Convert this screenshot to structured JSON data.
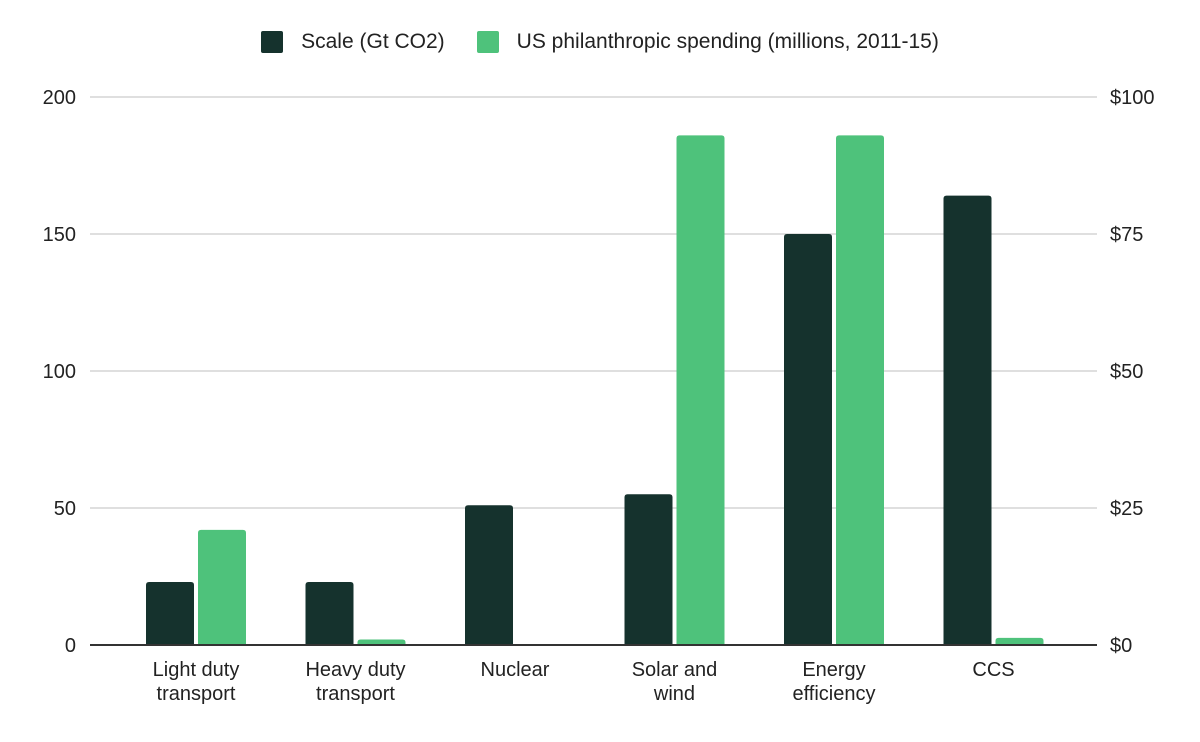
{
  "chart_data": {
    "type": "bar",
    "title": "",
    "categories": [
      [
        "Light duty",
        "transport"
      ],
      [
        "Heavy duty",
        "transport"
      ],
      [
        "Nuclear"
      ],
      [
        "Solar and",
        "wind"
      ],
      [
        "Energy",
        "efficiency"
      ],
      [
        "CCS"
      ]
    ],
    "series": [
      {
        "name": "Scale (Gt CO2)",
        "color": "#15322d",
        "axis": "left",
        "values": [
          23,
          23,
          51,
          55,
          150,
          164
        ]
      },
      {
        "name": "US philanthropic spending (millions, 2011-15)",
        "color": "#4ec27b",
        "axis": "right",
        "values": [
          21,
          1,
          0,
          93,
          93,
          1.3
        ]
      }
    ],
    "left_axis": {
      "label": "",
      "range": [
        0,
        200
      ],
      "ticks": [
        0,
        50,
        100,
        150,
        200
      ],
      "tick_labels": [
        "0",
        "50",
        "100",
        "150",
        "200"
      ]
    },
    "right_axis": {
      "label": "",
      "range": [
        0,
        100
      ],
      "ticks": [
        0,
        25,
        50,
        75,
        100
      ],
      "tick_labels": [
        "$0",
        "$25",
        "$50",
        "$75",
        "$100"
      ]
    },
    "xlabel": "",
    "grid": true,
    "legend": "top-center"
  }
}
